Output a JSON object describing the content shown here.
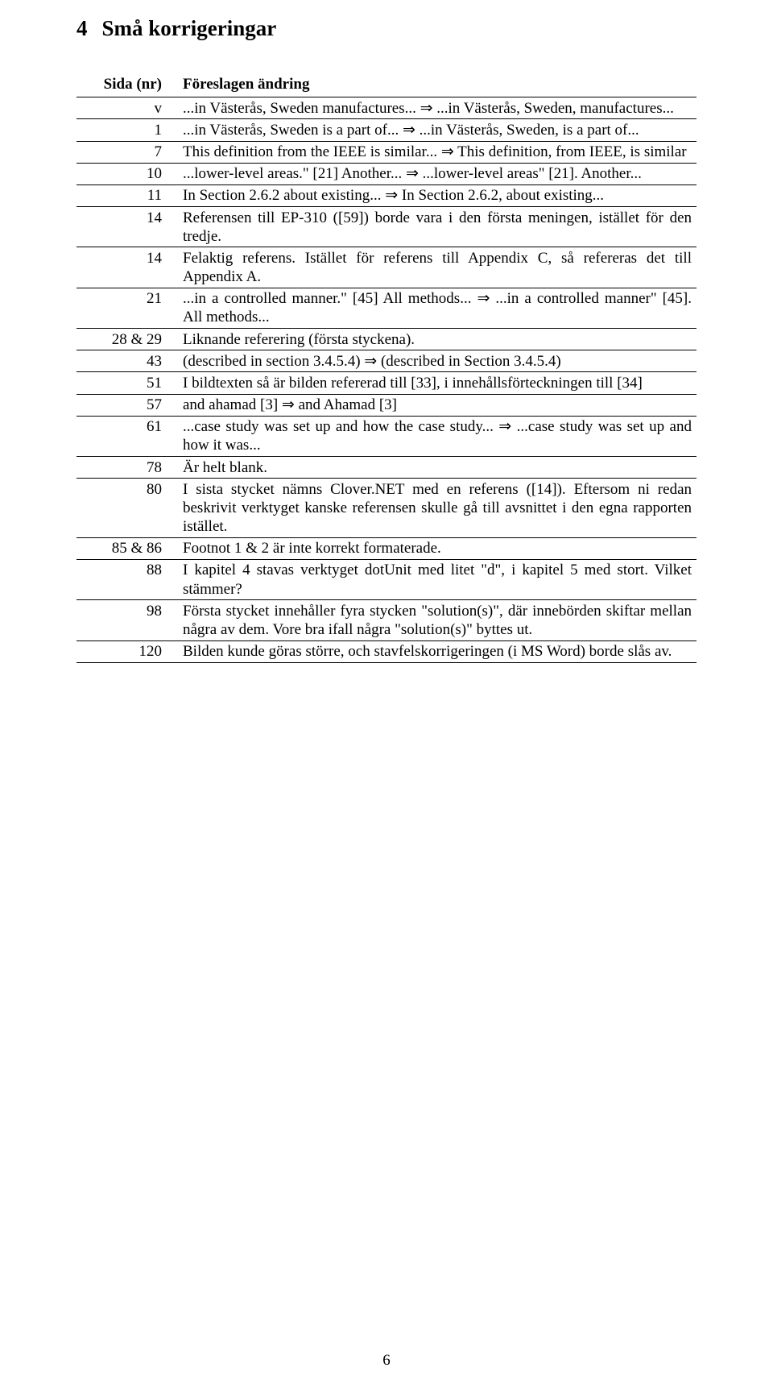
{
  "heading": {
    "number": "4",
    "title": "Små korrigeringar"
  },
  "table": {
    "headers": {
      "page": "Sida (nr)",
      "change": "Föreslagen ändring"
    },
    "rows": [
      {
        "page": "v",
        "change": "...in Västerås, Sweden manufactures... ⇒ ...in Västerås, Sweden, manufactures..."
      },
      {
        "page": "1",
        "change": "...in Västerås, Sweden is a part of... ⇒ ...in Västerås, Sweden, is a part of..."
      },
      {
        "page": "7",
        "change": "This definition from the IEEE is similar... ⇒ This definition, from IEEE, is similar"
      },
      {
        "page": "10",
        "change": "...lower-level areas.\" [21] Another... ⇒ ...lower-level areas\" [21]. Another..."
      },
      {
        "page": "11",
        "change": "In Section 2.6.2 about existing... ⇒ In Section 2.6.2, about existing..."
      },
      {
        "page": "14",
        "change": "Referensen till EP-310 ([59]) borde vara i den första meningen, istället för den tredje."
      },
      {
        "page": "14",
        "change": "Felaktig referens. Istället för referens till Appendix C, så refereras det till Appendix A."
      },
      {
        "page": "21",
        "change": "...in a controlled manner.\" [45] All methods... ⇒ ...in a controlled manner\" [45]. All methods..."
      },
      {
        "page": "28 & 29",
        "change": "Liknande referering (första styckena)."
      },
      {
        "page": "43",
        "change": "(described in section 3.4.5.4) ⇒ (described in Section 3.4.5.4)"
      },
      {
        "page": "51",
        "change": "I bildtexten så är bilden refererad till [33], i innehållsförteckningen till [34]"
      },
      {
        "page": "57",
        "change": "and ahamad [3] ⇒ and Ahamad [3]"
      },
      {
        "page": "61",
        "change": "...case study was set up and how the case study... ⇒ ...case study was set up and how it was..."
      },
      {
        "page": "78",
        "change": "Är helt blank."
      },
      {
        "page": "80",
        "change": "I sista stycket nämns Clover.NET med en referens ([14]). Eftersom ni redan beskrivit verktyget kanske referensen skulle gå till avsnittet i den egna rapporten istället."
      },
      {
        "page": "85 & 86",
        "change": "Footnot 1 & 2 är inte korrekt formaterade."
      },
      {
        "page": "88",
        "change": "I kapitel 4 stavas verktyget dotUnit med litet \"d\", i kapitel 5 med stort. Vilket stämmer?"
      },
      {
        "page": "98",
        "change": "Första stycket innehåller fyra stycken \"solution(s)\", där innebörden skiftar mellan några av dem. Vore bra ifall några \"solution(s)\" byttes ut."
      },
      {
        "page": "120",
        "change": "Bilden kunde göras större, och stavfelskorrigeringen (i MS Word) borde slås av."
      }
    ]
  },
  "footer": {
    "pagenum": "6"
  }
}
